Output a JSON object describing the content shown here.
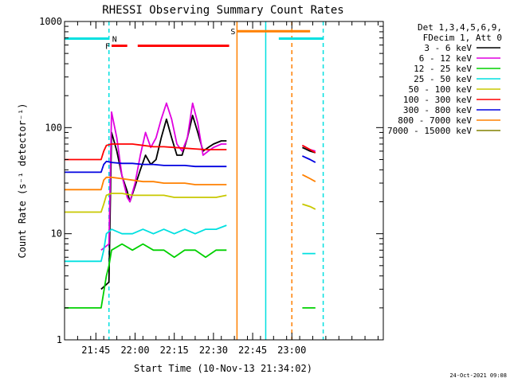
{
  "chart_data": {
    "type": "line",
    "title": "RHESSI Observing Summary Count Rates",
    "xlabel": "Start Time (10-Nov-13 21:34:02)",
    "ylabel": "Count Rate (s⁻¹ detector⁻¹)",
    "y_scale": "log",
    "ylim": [
      1,
      1000
    ],
    "xlim_minutes": [
      0,
      122
    ],
    "x_ticks": [
      {
        "minute": 12,
        "label": "21:45"
      },
      {
        "minute": 27,
        "label": "22:00"
      },
      {
        "minute": 42,
        "label": "22:15"
      },
      {
        "minute": 57,
        "label": "22:30"
      },
      {
        "minute": 72,
        "label": "22:45"
      },
      {
        "minute": 87,
        "label": "23:00"
      }
    ],
    "y_ticks": [
      {
        "value": 1,
        "label": "1"
      },
      {
        "value": 10,
        "label": "10"
      },
      {
        "value": 100,
        "label": "100"
      },
      {
        "value": 1000,
        "label": "1000"
      }
    ],
    "legend_header": [
      "Det 1,3,4,5,6,9,",
      "FDecim 1, Att 0"
    ],
    "series": [
      {
        "name": "3 - 6 keV",
        "color": "#000000",
        "segments": [
          [
            [
              14,
              3
            ],
            [
              17,
              3.5
            ],
            [
              18,
              90
            ],
            [
              20,
              60
            ],
            [
              22,
              35
            ],
            [
              24,
              25
            ],
            [
              25,
              20
            ],
            [
              27,
              28
            ],
            [
              29,
              40
            ],
            [
              31,
              55
            ],
            [
              33,
              45
            ],
            [
              35,
              50
            ],
            [
              37,
              80
            ],
            [
              39,
              120
            ],
            [
              41,
              80
            ],
            [
              43,
              55
            ],
            [
              45,
              55
            ],
            [
              47,
              80
            ],
            [
              49,
              130
            ],
            [
              51,
              90
            ],
            [
              53,
              60
            ],
            [
              55,
              65
            ],
            [
              57,
              70
            ],
            [
              60,
              75
            ],
            [
              62,
              75
            ]
          ],
          [
            [
              91,
              65
            ],
            [
              94,
              60
            ],
            [
              96,
              58
            ]
          ]
        ]
      },
      {
        "name": "6 - 12 keV",
        "color": "#e000e0",
        "segments": [
          [
            [
              14,
              7
            ],
            [
              17,
              8
            ],
            [
              18,
              140
            ],
            [
              20,
              80
            ],
            [
              22,
              35
            ],
            [
              24,
              22
            ],
            [
              25,
              20
            ],
            [
              27,
              30
            ],
            [
              29,
              55
            ],
            [
              31,
              90
            ],
            [
              33,
              65
            ],
            [
              35,
              80
            ],
            [
              37,
              120
            ],
            [
              39,
              170
            ],
            [
              41,
              120
            ],
            [
              43,
              70
            ],
            [
              45,
              60
            ],
            [
              47,
              80
            ],
            [
              49,
              170
            ],
            [
              51,
              110
            ],
            [
              53,
              55
            ],
            [
              55,
              60
            ],
            [
              57,
              65
            ],
            [
              60,
              70
            ],
            [
              62,
              70
            ]
          ],
          [
            [
              91,
              68
            ],
            [
              94,
              62
            ],
            [
              96,
              60
            ]
          ]
        ]
      },
      {
        "name": "12 - 25 keV",
        "color": "#00d000",
        "segments": [
          [
            [
              0,
              2
            ],
            [
              14,
              2
            ],
            [
              16,
              4
            ],
            [
              17,
              5
            ],
            [
              18,
              7
            ],
            [
              22,
              8
            ],
            [
              26,
              7
            ],
            [
              30,
              8
            ],
            [
              34,
              7
            ],
            [
              38,
              7
            ],
            [
              42,
              6
            ],
            [
              46,
              7
            ],
            [
              50,
              7
            ],
            [
              54,
              6
            ],
            [
              58,
              7
            ],
            [
              62,
              7
            ]
          ],
          [
            [
              91,
              2
            ],
            [
              94,
              2
            ],
            [
              96,
              2
            ]
          ]
        ]
      },
      {
        "name": "25 - 50 keV",
        "color": "#00e0e0",
        "segments": [
          [
            [
              0,
              5.5
            ],
            [
              14,
              5.5
            ],
            [
              15,
              7
            ],
            [
              16,
              10
            ],
            [
              18,
              11
            ],
            [
              22,
              10
            ],
            [
              26,
              10
            ],
            [
              30,
              11
            ],
            [
              34,
              10
            ],
            [
              38,
              11
            ],
            [
              42,
              10
            ],
            [
              46,
              11
            ],
            [
              50,
              10
            ],
            [
              54,
              11
            ],
            [
              58,
              11
            ],
            [
              62,
              12
            ]
          ],
          [
            [
              91,
              6.5
            ],
            [
              94,
              6.5
            ],
            [
              96,
              6.5
            ]
          ]
        ]
      },
      {
        "name": "50 - 100 keV",
        "color": "#c8c800",
        "segments": [
          [
            [
              0,
              16
            ],
            [
              14,
              16
            ],
            [
              15,
              19
            ],
            [
              16,
              23
            ],
            [
              18,
              24
            ],
            [
              22,
              24
            ],
            [
              26,
              23
            ],
            [
              30,
              23
            ],
            [
              34,
              23
            ],
            [
              38,
              23
            ],
            [
              42,
              22
            ],
            [
              46,
              22
            ],
            [
              50,
              22
            ],
            [
              54,
              22
            ],
            [
              58,
              22
            ],
            [
              62,
              23
            ]
          ],
          [
            [
              91,
              19
            ],
            [
              94,
              18
            ],
            [
              96,
              17
            ]
          ]
        ]
      },
      {
        "name": "100 - 300 keV",
        "color": "#ff0000",
        "segments": [
          [
            [
              0,
              50
            ],
            [
              14,
              50
            ],
            [
              15,
              60
            ],
            [
              16,
              68
            ],
            [
              18,
              70
            ],
            [
              22,
              70
            ],
            [
              26,
              70
            ],
            [
              30,
              68
            ],
            [
              34,
              66
            ],
            [
              38,
              66
            ],
            [
              42,
              65
            ],
            [
              46,
              64
            ],
            [
              50,
              63
            ],
            [
              54,
              62
            ],
            [
              58,
              62
            ],
            [
              62,
              62
            ]
          ],
          [
            [
              91,
              68
            ],
            [
              94,
              62
            ],
            [
              96,
              58
            ]
          ]
        ]
      },
      {
        "name": "300 - 800 keV",
        "color": "#0000e0",
        "segments": [
          [
            [
              0,
              38
            ],
            [
              14,
              38
            ],
            [
              15,
              45
            ],
            [
              16,
              48
            ],
            [
              18,
              47
            ],
            [
              22,
              46
            ],
            [
              26,
              46
            ],
            [
              30,
              45
            ],
            [
              34,
              45
            ],
            [
              38,
              44
            ],
            [
              42,
              44
            ],
            [
              46,
              44
            ],
            [
              50,
              43
            ],
            [
              54,
              43
            ],
            [
              58,
              43
            ],
            [
              62,
              43
            ]
          ],
          [
            [
              91,
              54
            ],
            [
              94,
              50
            ],
            [
              96,
              47
            ]
          ]
        ]
      },
      {
        "name": "800 - 7000 keV",
        "color": "#ff8000",
        "segments": [
          [
            [
              0,
              26
            ],
            [
              14,
              26
            ],
            [
              15,
              32
            ],
            [
              16,
              34
            ],
            [
              18,
              34
            ],
            [
              22,
              33
            ],
            [
              26,
              32
            ],
            [
              30,
              31
            ],
            [
              34,
              31
            ],
            [
              38,
              30
            ],
            [
              42,
              30
            ],
            [
              46,
              30
            ],
            [
              50,
              29
            ],
            [
              54,
              29
            ],
            [
              58,
              29
            ],
            [
              62,
              29
            ]
          ],
          [
            [
              91,
              36
            ],
            [
              94,
              33
            ],
            [
              96,
              31
            ]
          ]
        ]
      },
      {
        "name": "7000 - 15000 keV",
        "color": "#808000",
        "segments": []
      }
    ],
    "flag_bars": [
      {
        "label": "",
        "color": "#00e0e0",
        "x_start": 0,
        "x_end": 17,
        "y": 690
      },
      {
        "label": "N",
        "color": "#00e0e0",
        "x_start": 17,
        "x_end": 17,
        "y": 690
      },
      {
        "label": "F",
        "color": "#ff0000",
        "x_start": 18,
        "x_end": 24,
        "y": 590
      },
      {
        "label": "",
        "color": "#ff0000",
        "x_start": 28,
        "x_end": 63,
        "y": 590
      },
      {
        "label": "S",
        "color": "#ff8000",
        "x_start": 66,
        "x_end": 94,
        "y": 810
      },
      {
        "label": "",
        "color": "#00e0e0",
        "x_start": 82,
        "x_end": 99,
        "y": 690
      }
    ],
    "vertical_markers": [
      {
        "minute": 17,
        "color": "#00e0e0",
        "style": "dashed"
      },
      {
        "minute": 66,
        "color": "#ff8000",
        "style": "solid"
      },
      {
        "minute": 77,
        "color": "#00e0e0",
        "style": "solid"
      },
      {
        "minute": 87,
        "color": "#ff8000",
        "style": "dashed"
      },
      {
        "minute": 99,
        "color": "#00e0e0",
        "style": "dashed"
      }
    ],
    "timestamp": "24-Oct-2021 09:08"
  }
}
